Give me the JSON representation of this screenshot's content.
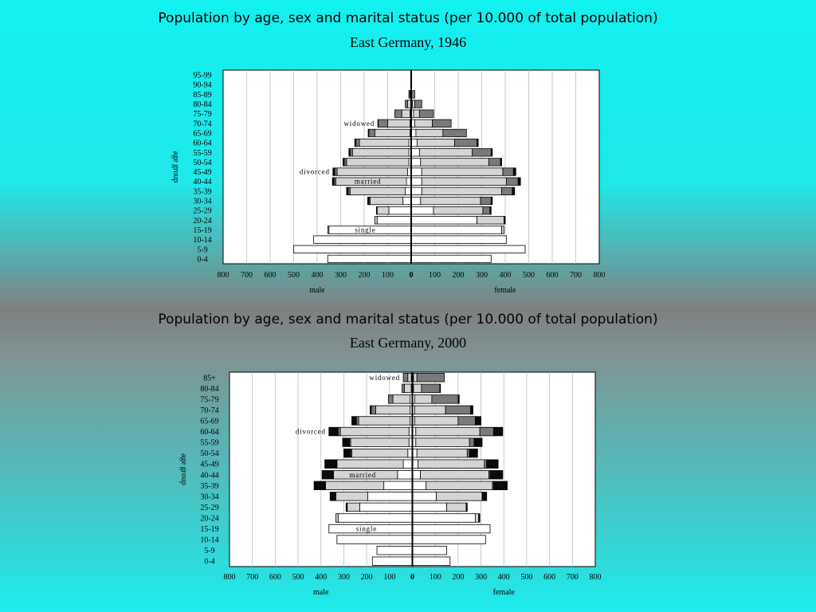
{
  "charts": [
    {
      "title": "Population by age, sex and marital status (per 10.000 of total population)",
      "subtitle": "East Germany, 1946"
    },
    {
      "title": "Population by age, sex and marital status (per 10.000 of total population)",
      "subtitle": "East Germany, 2000"
    }
  ],
  "colors": {
    "single": "#ffffff",
    "married": "#d4d4d4",
    "widowed": "#7a7a7a",
    "divorced": "#0a0a0a",
    "bar_border": "#000000",
    "plot_background": "#ffffff",
    "grid": "#bdbdbd"
  },
  "chart_data": [
    {
      "type": "bar",
      "orientation": "horizontal-stacked-population-pyramid",
      "title": "Population by age, sex and marital status (per 10.000 of total population)",
      "subtitle": "East Germany, 1946",
      "ylabel": "age group",
      "male_label": "male",
      "female_label": "female",
      "xlim": [
        -800,
        800
      ],
      "xticks": [
        "800",
        "700",
        "600",
        "500",
        "400",
        "300",
        "200",
        "100",
        "0",
        "100",
        "200",
        "300",
        "400",
        "500",
        "600",
        "700",
        "800"
      ],
      "status_order": [
        "single",
        "married",
        "widowed",
        "divorced"
      ],
      "annotations": [
        {
          "text": "widowed",
          "age_group": "70-74"
        },
        {
          "text": "divorced",
          "age_group": "45-49"
        },
        {
          "text": "married",
          "age_group": "40-44"
        },
        {
          "text": "single",
          "age_group": "15-19"
        }
      ],
      "age_groups": [
        "0-4",
        "5-9",
        "10-14",
        "15-19",
        "20-24",
        "25-29",
        "30-34",
        "35-39",
        "40-44",
        "45-49",
        "50-54",
        "55-59",
        "60-64",
        "65-69",
        "70-74",
        "75-79",
        "80-84",
        "85-89",
        "90-94",
        "95-99"
      ],
      "male": {
        "single": [
          355,
          500,
          415,
          350,
          145,
          95,
          35,
          25,
          20,
          15,
          10,
          10,
          10,
          5,
          5,
          5,
          0,
          0,
          0,
          0
        ],
        "married": [
          0,
          0,
          0,
          5,
          10,
          50,
          140,
          235,
          300,
          300,
          265,
          240,
          210,
          150,
          95,
          35,
          15,
          5,
          0,
          0
        ],
        "widowed": [
          0,
          0,
          0,
          0,
          0,
          0,
          5,
          8,
          8,
          10,
          10,
          10,
          15,
          25,
          40,
          30,
          10,
          5,
          0,
          0
        ],
        "divorced": [
          0,
          0,
          0,
          0,
          0,
          3,
          5,
          7,
          7,
          8,
          5,
          5,
          5,
          3,
          2,
          0,
          0,
          0,
          0,
          0
        ]
      },
      "female": {
        "single": [
          340,
          485,
          405,
          385,
          280,
          95,
          40,
          45,
          45,
          45,
          40,
          35,
          25,
          20,
          15,
          10,
          5,
          0,
          0,
          0
        ],
        "married": [
          0,
          0,
          0,
          10,
          115,
          210,
          255,
          340,
          360,
          345,
          290,
          225,
          160,
          115,
          75,
          25,
          10,
          0,
          0,
          0
        ],
        "widowed": [
          0,
          0,
          0,
          0,
          0,
          30,
          45,
          45,
          50,
          45,
          50,
          80,
          95,
          100,
          80,
          60,
          30,
          15,
          0,
          0
        ],
        "divorced": [
          0,
          0,
          0,
          0,
          5,
          5,
          5,
          10,
          10,
          10,
          5,
          5,
          5,
          0,
          0,
          0,
          0,
          0,
          0,
          0
        ]
      }
    },
    {
      "type": "bar",
      "orientation": "horizontal-stacked-population-pyramid",
      "title": "Population by age, sex and marital status (per 10.000 of total population)",
      "subtitle": "East Germany, 2000",
      "ylabel": "age group",
      "male_label": "male",
      "female_label": "female",
      "xlim": [
        -800,
        800
      ],
      "xticks": [
        "800",
        "700",
        "600",
        "500",
        "400",
        "300",
        "200",
        "100",
        "0",
        "100",
        "200",
        "300",
        "400",
        "500",
        "600",
        "700",
        "800"
      ],
      "status_order": [
        "single",
        "married",
        "widowed",
        "divorced"
      ],
      "annotations": [
        {
          "text": "widowed",
          "age_group": "85+"
        },
        {
          "text": "divorced",
          "age_group": "60-64"
        },
        {
          "text": "married",
          "age_group": "40-44"
        },
        {
          "text": "single",
          "age_group": "15-19"
        }
      ],
      "age_groups": [
        "0-4",
        "5-9",
        "10-14",
        "15-19",
        "20-24",
        "25-29",
        "30-34",
        "35-39",
        "40-44",
        "45-49",
        "50-54",
        "55-59",
        "60-64",
        "65-69",
        "70-74",
        "75-79",
        "80-84",
        "85+"
      ],
      "male": {
        "single": [
          175,
          155,
          330,
          365,
          325,
          230,
          195,
          125,
          65,
          40,
          20,
          15,
          15,
          10,
          10,
          10,
          5,
          5
        ],
        "married": [
          0,
          0,
          0,
          0,
          10,
          55,
          140,
          255,
          280,
          290,
          245,
          255,
          300,
          225,
          150,
          75,
          30,
          15
        ],
        "widowed": [
          0,
          0,
          0,
          0,
          0,
          0,
          0,
          0,
          0,
          3,
          5,
          5,
          10,
          10,
          20,
          20,
          10,
          20
        ],
        "divorced": [
          0,
          0,
          0,
          0,
          0,
          5,
          25,
          50,
          50,
          50,
          30,
          30,
          40,
          20,
          5,
          0,
          0,
          0
        ]
      },
      "female": {
        "single": [
          165,
          150,
          320,
          340,
          275,
          150,
          105,
          60,
          35,
          25,
          20,
          15,
          15,
          10,
          10,
          10,
          5,
          5
        ],
        "married": [
          0,
          0,
          0,
          0,
          15,
          85,
          200,
          290,
          300,
          290,
          220,
          235,
          280,
          190,
          135,
          75,
          35,
          15
        ],
        "widowed": [
          0,
          0,
          0,
          0,
          0,
          0,
          0,
          5,
          5,
          10,
          10,
          20,
          60,
          75,
          110,
          115,
          80,
          120
        ],
        "divorced": [
          0,
          0,
          0,
          0,
          5,
          5,
          20,
          60,
          55,
          50,
          35,
          35,
          40,
          25,
          10,
          5,
          3,
          0
        ]
      }
    }
  ]
}
